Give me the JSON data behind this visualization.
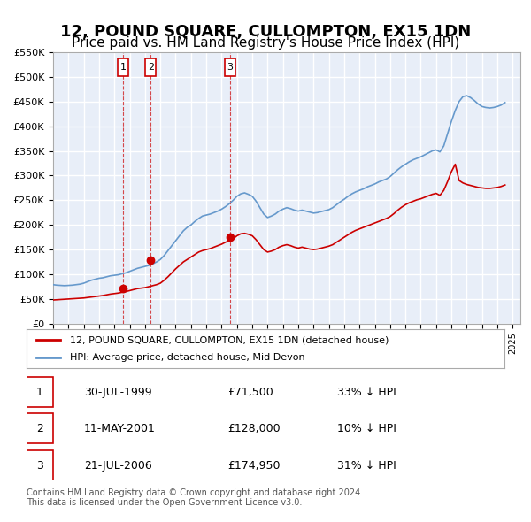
{
  "title": "12, POUND SQUARE, CULLOMPTON, EX15 1DN",
  "subtitle": "Price paid vs. HM Land Registry's House Price Index (HPI)",
  "title_fontsize": 13,
  "subtitle_fontsize": 11,
  "ylim": [
    0,
    550000
  ],
  "yticks": [
    0,
    50000,
    100000,
    150000,
    200000,
    250000,
    300000,
    350000,
    400000,
    450000,
    500000,
    550000
  ],
  "ytick_labels": [
    "£0",
    "£50K",
    "£100K",
    "£150K",
    "£200K",
    "£250K",
    "£300K",
    "£350K",
    "£400K",
    "£450K",
    "£500K",
    "£550K"
  ],
  "xlim_start": 1995.0,
  "xlim_end": 2025.5,
  "bg_color": "#e8eef8",
  "plot_bg_color": "#e8eef8",
  "grid_color": "#ffffff",
  "red_line_color": "#cc0000",
  "blue_line_color": "#6699cc",
  "sale_marker_color": "#cc0000",
  "legend_line1": "12, POUND SQUARE, CULLOMPTON, EX15 1DN (detached house)",
  "legend_line2": "HPI: Average price, detached house, Mid Devon",
  "sales": [
    {
      "num": 1,
      "date": "30-JUL-1999",
      "price": 71500,
      "hpi_diff": "33% ↓ HPI",
      "year": 1999.58
    },
    {
      "num": 2,
      "date": "11-MAY-2001",
      "price": 128000,
      "hpi_diff": "10% ↓ HPI",
      "year": 2001.37
    },
    {
      "num": 3,
      "date": "21-JUL-2006",
      "price": 174950,
      "hpi_diff": "31% ↓ HPI",
      "year": 2006.55
    }
  ],
  "footnote": "Contains HM Land Registry data © Crown copyright and database right 2024.\nThis data is licensed under the Open Government Licence v3.0.",
  "hpi_data_x": [
    1995.0,
    1995.25,
    1995.5,
    1995.75,
    1996.0,
    1996.25,
    1996.5,
    1996.75,
    1997.0,
    1997.25,
    1997.5,
    1997.75,
    1998.0,
    1998.25,
    1998.5,
    1998.75,
    1999.0,
    1999.25,
    1999.5,
    1999.75,
    2000.0,
    2000.25,
    2000.5,
    2000.75,
    2001.0,
    2001.25,
    2001.5,
    2001.75,
    2002.0,
    2002.25,
    2002.5,
    2002.75,
    2003.0,
    2003.25,
    2003.5,
    2003.75,
    2004.0,
    2004.25,
    2004.5,
    2004.75,
    2005.0,
    2005.25,
    2005.5,
    2005.75,
    2006.0,
    2006.25,
    2006.5,
    2006.75,
    2007.0,
    2007.25,
    2007.5,
    2007.75,
    2008.0,
    2008.25,
    2008.5,
    2008.75,
    2009.0,
    2009.25,
    2009.5,
    2009.75,
    2010.0,
    2010.25,
    2010.5,
    2010.75,
    2011.0,
    2011.25,
    2011.5,
    2011.75,
    2012.0,
    2012.25,
    2012.5,
    2012.75,
    2013.0,
    2013.25,
    2013.5,
    2013.75,
    2014.0,
    2014.25,
    2014.5,
    2014.75,
    2015.0,
    2015.25,
    2015.5,
    2015.75,
    2016.0,
    2016.25,
    2016.5,
    2016.75,
    2017.0,
    2017.25,
    2017.5,
    2017.75,
    2018.0,
    2018.25,
    2018.5,
    2018.75,
    2019.0,
    2019.25,
    2019.5,
    2019.75,
    2020.0,
    2020.25,
    2020.5,
    2020.75,
    2021.0,
    2021.25,
    2021.5,
    2021.75,
    2022.0,
    2022.25,
    2022.5,
    2022.75,
    2023.0,
    2023.25,
    2023.5,
    2023.75,
    2024.0,
    2024.25,
    2024.5
  ],
  "hpi_data_y": [
    79000,
    78000,
    77500,
    77000,
    77500,
    78000,
    79000,
    80000,
    82000,
    85000,
    88000,
    90000,
    92000,
    93000,
    95000,
    97000,
    98000,
    99000,
    101000,
    103000,
    106000,
    109000,
    112000,
    114000,
    116000,
    118000,
    121000,
    125000,
    130000,
    138000,
    148000,
    158000,
    168000,
    178000,
    188000,
    195000,
    200000,
    207000,
    213000,
    218000,
    220000,
    222000,
    225000,
    228000,
    232000,
    237000,
    243000,
    250000,
    258000,
    263000,
    265000,
    262000,
    258000,
    248000,
    235000,
    222000,
    215000,
    218000,
    222000,
    228000,
    232000,
    235000,
    233000,
    230000,
    228000,
    230000,
    228000,
    226000,
    224000,
    225000,
    227000,
    229000,
    231000,
    235000,
    241000,
    247000,
    252000,
    258000,
    263000,
    267000,
    270000,
    273000,
    277000,
    280000,
    283000,
    287000,
    290000,
    293000,
    298000,
    305000,
    312000,
    318000,
    323000,
    328000,
    332000,
    335000,
    338000,
    342000,
    346000,
    350000,
    352000,
    348000,
    360000,
    385000,
    410000,
    432000,
    450000,
    460000,
    462000,
    458000,
    452000,
    445000,
    440000,
    438000,
    437000,
    438000,
    440000,
    443000,
    448000
  ],
  "property_data_x": [
    1995.0,
    1995.25,
    1995.5,
    1995.75,
    1996.0,
    1996.25,
    1996.5,
    1996.75,
    1997.0,
    1997.25,
    1997.5,
    1997.75,
    1998.0,
    1998.25,
    1998.5,
    1998.75,
    1999.0,
    1999.25,
    1999.5,
    1999.75,
    2000.0,
    2000.25,
    2000.5,
    2000.75,
    2001.0,
    2001.25,
    2001.5,
    2001.75,
    2002.0,
    2002.25,
    2002.5,
    2002.75,
    2003.0,
    2003.25,
    2003.5,
    2003.75,
    2004.0,
    2004.25,
    2004.5,
    2004.75,
    2005.0,
    2005.25,
    2005.5,
    2005.75,
    2006.0,
    2006.25,
    2006.5,
    2006.75,
    2007.0,
    2007.25,
    2007.5,
    2007.75,
    2008.0,
    2008.25,
    2008.5,
    2008.75,
    2009.0,
    2009.25,
    2009.5,
    2009.75,
    2010.0,
    2010.25,
    2010.5,
    2010.75,
    2011.0,
    2011.25,
    2011.5,
    2011.75,
    2012.0,
    2012.25,
    2012.5,
    2012.75,
    2013.0,
    2013.25,
    2013.5,
    2013.75,
    2014.0,
    2014.25,
    2014.5,
    2014.75,
    2015.0,
    2015.25,
    2015.5,
    2015.75,
    2016.0,
    2016.25,
    2016.5,
    2016.75,
    2017.0,
    2017.25,
    2017.5,
    2017.75,
    2018.0,
    2018.25,
    2018.5,
    2018.75,
    2019.0,
    2019.25,
    2019.5,
    2019.75,
    2020.0,
    2020.25,
    2020.5,
    2020.75,
    2021.0,
    2021.25,
    2021.5,
    2021.75,
    2022.0,
    2022.25,
    2022.5,
    2022.75,
    2023.0,
    2023.25,
    2023.5,
    2023.75,
    2024.0,
    2024.25,
    2024.5
  ],
  "property_data_y": [
    48000,
    48500,
    49000,
    49500,
    50000,
    50500,
    51000,
    51500,
    52000,
    53000,
    54000,
    55000,
    56000,
    57000,
    58500,
    60000,
    61000,
    62000,
    63500,
    65000,
    67000,
    69000,
    71000,
    72000,
    73000,
    75000,
    77000,
    79000,
    82000,
    88000,
    95000,
    103000,
    111000,
    118000,
    125000,
    130000,
    135000,
    140000,
    145000,
    148000,
    150000,
    152000,
    155000,
    158000,
    161000,
    165000,
    168000,
    172000,
    178000,
    182000,
    183000,
    181000,
    178000,
    170000,
    160000,
    150000,
    145000,
    147000,
    150000,
    155000,
    158000,
    160000,
    158000,
    155000,
    153000,
    155000,
    153000,
    151000,
    150000,
    151000,
    153000,
    155000,
    157000,
    160000,
    165000,
    170000,
    175000,
    180000,
    185000,
    189000,
    192000,
    195000,
    198000,
    201000,
    204000,
    207000,
    210000,
    213000,
    217000,
    223000,
    230000,
    236000,
    241000,
    245000,
    248000,
    251000,
    253000,
    256000,
    259000,
    262000,
    264000,
    260000,
    270000,
    288000,
    308000,
    323000,
    290000,
    285000,
    282000,
    280000,
    278000,
    276000,
    275000,
    274000,
    274000,
    275000,
    276000,
    278000,
    281000
  ]
}
